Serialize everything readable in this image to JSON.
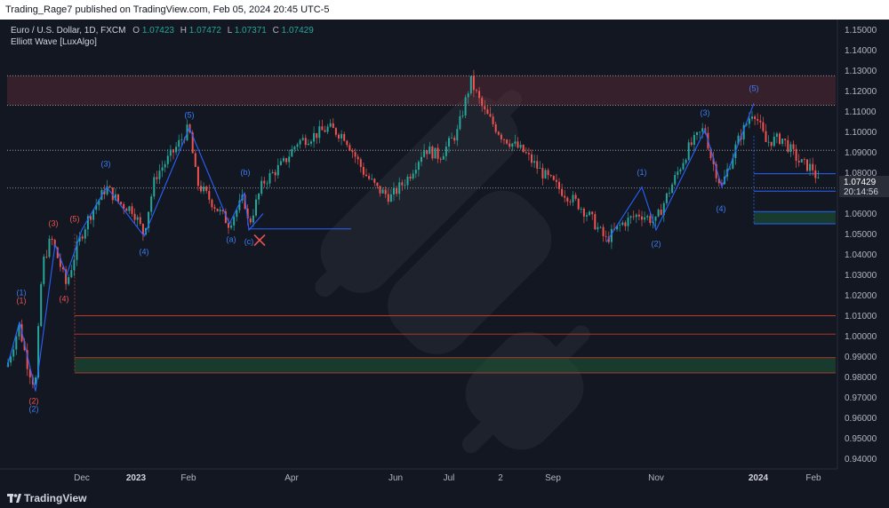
{
  "header": {
    "publish_line": "Trading_Rage7 published on TradingView.com, Feb 05, 2024 20:45 UTC-5"
  },
  "legend": {
    "symbol_line": "Euro / U.S. Dollar, 1D, FXCM",
    "ohlc": [
      {
        "label": "O",
        "value": "1.07423"
      },
      {
        "label": "H",
        "value": "1.07472"
      },
      {
        "label": "L",
        "value": "1.07371"
      },
      {
        "label": "C",
        "value": "1.07429"
      }
    ],
    "indicator": "Elliott Wave [LuxAlgo]"
  },
  "price_tag": {
    "price": "1.07429",
    "countdown": "20:14:56"
  },
  "footer": {
    "brand": "TradingView"
  },
  "colors": {
    "background": "#131722",
    "candle_up": "#26a69a",
    "candle_down": "#ef5350",
    "wave_line": "#2962ff",
    "label_blue": "#3d7ef5",
    "label_red": "#f05350",
    "axis_text": "#b2b5be",
    "price_tag": "#2a2e39"
  },
  "chart_data": {
    "type": "candlestick",
    "symbol": "EURUSD",
    "timeframe": "1D",
    "ylim": [
      0.935,
      1.155
    ],
    "y_ticks": [
      1.15,
      1.14,
      1.13,
      1.12,
      1.11,
      1.1,
      1.09,
      1.08,
      1.07,
      1.06,
      1.05,
      1.04,
      1.03,
      1.02,
      1.01,
      1.0,
      0.99,
      0.98,
      0.97,
      0.96,
      0.95,
      0.94
    ],
    "x_ticks": [
      "Dec",
      "2023",
      "Feb",
      "Apr",
      "Jun",
      "Jul",
      "2",
      "Sep",
      "Nov",
      "2024",
      "Feb"
    ],
    "x_tick_positions": [
      92,
      153,
      212,
      328,
      445,
      505,
      563,
      622,
      738,
      853,
      915
    ],
    "price_path": [
      [
        8,
        0.985
      ],
      [
        22,
        1.005
      ],
      [
        32,
        0.985
      ],
      [
        40,
        0.975
      ],
      [
        48,
        1.035
      ],
      [
        58,
        1.048
      ],
      [
        68,
        1.035
      ],
      [
        75,
        1.025
      ],
      [
        88,
        1.045
      ],
      [
        100,
        1.058
      ],
      [
        120,
        1.073
      ],
      [
        135,
        1.065
      ],
      [
        150,
        1.062
      ],
      [
        162,
        1.05
      ],
      [
        175,
        1.078
      ],
      [
        195,
        1.09
      ],
      [
        213,
        1.102
      ],
      [
        222,
        1.075
      ],
      [
        240,
        1.065
      ],
      [
        258,
        1.055
      ],
      [
        275,
        1.068
      ],
      [
        280,
        1.054
      ],
      [
        296,
        1.075
      ],
      [
        320,
        1.085
      ],
      [
        335,
        1.095
      ],
      [
        352,
        1.098
      ],
      [
        370,
        1.102
      ],
      [
        388,
        1.098
      ],
      [
        410,
        1.08
      ],
      [
        425,
        1.072
      ],
      [
        440,
        1.068
      ],
      [
        460,
        1.078
      ],
      [
        478,
        1.092
      ],
      [
        495,
        1.088
      ],
      [
        515,
        1.1
      ],
      [
        530,
        1.125
      ],
      [
        545,
        1.11
      ],
      [
        565,
        1.098
      ],
      [
        590,
        1.09
      ],
      [
        610,
        1.08
      ],
      [
        630,
        1.072
      ],
      [
        650,
        1.065
      ],
      [
        665,
        1.058
      ],
      [
        682,
        1.047
      ],
      [
        700,
        1.055
      ],
      [
        720,
        1.06
      ],
      [
        738,
        1.056
      ],
      [
        750,
        1.068
      ],
      [
        775,
        1.092
      ],
      [
        793,
        1.102
      ],
      [
        800,
        1.088
      ],
      [
        812,
        1.073
      ],
      [
        830,
        1.095
      ],
      [
        848,
        1.111
      ],
      [
        862,
        1.095
      ],
      [
        880,
        1.097
      ],
      [
        900,
        1.085
      ],
      [
        915,
        1.082
      ],
      [
        922,
        1.074
      ]
    ],
    "wave_path": [
      [
        8,
        0.985
      ],
      [
        22,
        1.007
      ],
      [
        40,
        0.973
      ],
      [
        62,
        1.045
      ],
      [
        75,
        1.03
      ],
      [
        92,
        1.052
      ],
      [
        120,
        1.073
      ],
      [
        162,
        1.049
      ],
      [
        213,
        1.102
      ],
      [
        258,
        1.055
      ],
      [
        275,
        1.07
      ],
      [
        280,
        1.052
      ],
      [
        296,
        1.06
      ]
    ],
    "wave_path_2": [
      [
        682,
        1.046
      ],
      [
        722,
        1.073
      ],
      [
        738,
        1.052
      ],
      [
        793,
        1.101
      ],
      [
        812,
        1.073
      ],
      [
        848,
        1.114
      ]
    ],
    "wave_labels": [
      {
        "text": "(1)",
        "color": "blue",
        "x": 24,
        "y": 1.02
      },
      {
        "text": "(1)",
        "color": "red",
        "x": 24,
        "y": 1.016
      },
      {
        "text": "(2)",
        "color": "red",
        "x": 38,
        "y": 0.967
      },
      {
        "text": "(2)",
        "color": "blue",
        "x": 38,
        "y": 0.963
      },
      {
        "text": "(3)",
        "color": "red",
        "x": 60,
        "y": 1.054
      },
      {
        "text": "(4)",
        "color": "red",
        "x": 72,
        "y": 1.017
      },
      {
        "text": "(5)",
        "color": "red",
        "x": 84,
        "y": 1.056
      },
      {
        "text": "(3)",
        "color": "blue",
        "x": 119,
        "y": 1.083
      },
      {
        "text": "(4)",
        "color": "blue",
        "x": 162,
        "y": 1.04
      },
      {
        "text": "(5)",
        "color": "blue",
        "x": 213,
        "y": 1.107
      },
      {
        "text": "(b)",
        "color": "blue",
        "x": 276,
        "y": 1.079
      },
      {
        "text": "(a)",
        "color": "blue",
        "x": 260,
        "y": 1.046
      },
      {
        "text": "(c)",
        "color": "blue",
        "x": 280,
        "y": 1.045
      },
      {
        "text": "(1)",
        "color": "blue",
        "x": 722,
        "y": 1.079
      },
      {
        "text": "(2)",
        "color": "blue",
        "x": 738,
        "y": 1.044
      },
      {
        "text": "(3)",
        "color": "blue",
        "x": 793,
        "y": 1.108
      },
      {
        "text": "(4)",
        "color": "blue",
        "x": 811,
        "y": 1.061
      },
      {
        "text": "(5)",
        "color": "blue",
        "x": 848,
        "y": 1.12
      }
    ],
    "horizontal_lines": [
      {
        "y": 1.1275,
        "style": "dotted",
        "color": "#b2b5be"
      },
      {
        "y": 1.113,
        "style": "dotted",
        "color": "#b2b5be"
      },
      {
        "y": 1.091,
        "style": "dotted",
        "color": "#b2b5be"
      },
      {
        "y": 1.0725,
        "style": "dotted",
        "color": "#b2b5be"
      }
    ],
    "zones": [
      {
        "y_top": 1.1275,
        "y_bottom": 1.113,
        "x_start": 8,
        "x_end": 940,
        "fill": "rgba(120,50,60,0.35)"
      },
      {
        "y_top": 0.9895,
        "y_bottom": 0.982,
        "x_start": 84,
        "x_end": 940,
        "fill": "rgba(30,90,55,0.55)"
      },
      {
        "y_top": 1.061,
        "y_bottom": 1.055,
        "x_start": 848,
        "x_end": 940,
        "fill": "rgba(30,90,55,0.55)"
      }
    ],
    "red_lines": [
      1.01,
      1.001,
      0.9895,
      0.982
    ],
    "blue_levels": [
      {
        "y": 1.0525,
        "x_start": 280,
        "x_end": 395
      },
      {
        "y": 1.0795,
        "x_start": 848,
        "x_end": 940
      },
      {
        "y": 1.071,
        "x_start": 848,
        "x_end": 940
      },
      {
        "y": 1.061,
        "x_start": 848,
        "x_end": 940
      },
      {
        "y": 1.055,
        "x_start": 848,
        "x_end": 940
      }
    ],
    "invalidation_marker": {
      "x": 292,
      "y": 1.047
    }
  }
}
